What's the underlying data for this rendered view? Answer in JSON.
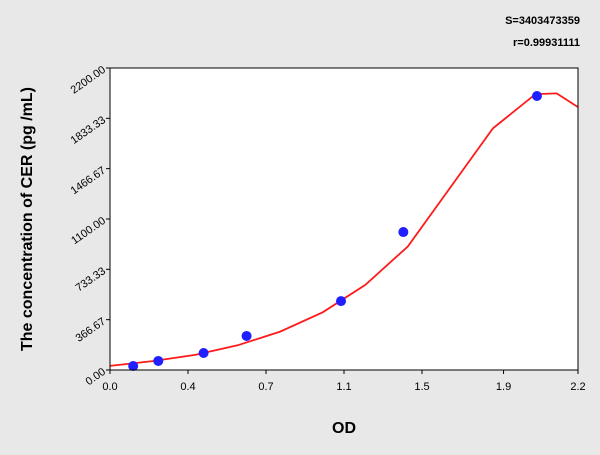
{
  "chart_data": {
    "type": "scatter",
    "annotations": [
      "S=3403473359",
      "r=0.99931111"
    ],
    "x_label": "OD",
    "y_label": "The concentration of CER (pg /mL)",
    "xlim": [
      0,
      2.2
    ],
    "ylim": [
      0,
      2200
    ],
    "xticks": [
      {
        "value": 0,
        "label": "0.0"
      },
      {
        "value": 0.3667,
        "label": "0.4"
      },
      {
        "value": 0.7333,
        "label": "0.7"
      },
      1.1,
      {
        "value": 1.4667,
        "label": "1.5"
      },
      {
        "value": 1.85,
        "label": "1.9"
      },
      2.2
    ],
    "yticks": [
      {
        "value": 0,
        "label": "0.00"
      },
      366.67,
      733.33,
      {
        "value": 1100,
        "label": "1100.00"
      },
      1466.67,
      1833.33,
      {
        "value": 2200,
        "label": "2200.00"
      }
    ],
    "points": {
      "color": "#1f1fff",
      "x": [
        0.109,
        0.227,
        0.44,
        0.642,
        1.086,
        1.379,
        2.007
      ],
      "values": [
        29,
        66,
        124,
        248,
        502,
        1005,
        1996
      ]
    },
    "fit": {
      "color": "#ff1a1a",
      "x": [
        0,
        0.2,
        0.4,
        0.6,
        0.8,
        1.0,
        1.2,
        1.4,
        1.6,
        1.8,
        2.0,
        2.1,
        2.2
      ],
      "values": [
        30,
        65,
        110,
        180,
        280,
        420,
        620,
        900,
        1330,
        1760,
        2010,
        2015,
        1915
      ]
    }
  }
}
